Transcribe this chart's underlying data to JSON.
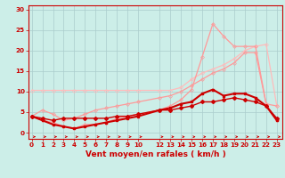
{
  "background_color": "#cceee8",
  "grid_color": "#aacccc",
  "xlabel": "Vent moyen/en rafales ( km/h )",
  "xlabel_color": "#cc0000",
  "xlabel_fontsize": 6.5,
  "tick_color": "#cc0000",
  "tick_fontsize": 5.2,
  "x_ticks": [
    0,
    1,
    2,
    3,
    4,
    5,
    6,
    7,
    8,
    9,
    10,
    12,
    13,
    14,
    15,
    16,
    17,
    18,
    19,
    20,
    21,
    22,
    23
  ],
  "ylim": [
    -1.5,
    31
  ],
  "xlim": [
    -0.3,
    23.5
  ],
  "yticks": [
    0,
    5,
    10,
    15,
    20,
    25,
    30
  ],
  "line1_x": [
    0,
    1,
    2,
    3,
    4,
    5,
    6,
    7,
    8,
    9,
    10,
    12,
    13,
    14,
    15,
    16,
    17,
    18,
    19,
    20,
    21,
    22,
    23
  ],
  "line1_y": [
    10.3,
    10.3,
    10.3,
    10.3,
    10.3,
    10.3,
    10.3,
    10.3,
    10.3,
    10.3,
    10.3,
    10.3,
    10.3,
    11.0,
    13.0,
    14.5,
    15.5,
    16.5,
    18.0,
    20.0,
    21.0,
    21.5,
    6.5
  ],
  "line1_color": "#ffbbbb",
  "line1_lw": 0.9,
  "line2_x": [
    0,
    1,
    2,
    3,
    4,
    5,
    6,
    7,
    8,
    9,
    10,
    12,
    13,
    14,
    15,
    16,
    17,
    18,
    19,
    20,
    21,
    22,
    23
  ],
  "line2_y": [
    4.0,
    5.5,
    4.5,
    3.0,
    3.5,
    4.5,
    5.5,
    6.0,
    6.5,
    7.0,
    7.5,
    8.5,
    9.0,
    10.0,
    11.5,
    13.0,
    14.5,
    15.5,
    17.0,
    19.5,
    19.5,
    7.0,
    6.5
  ],
  "line2_color": "#ff9999",
  "line2_lw": 0.9,
  "line3_x": [
    0,
    1,
    2,
    3,
    4,
    5,
    6,
    7,
    8,
    9,
    10,
    12,
    13,
    14,
    15,
    16,
    17,
    18,
    19,
    20,
    21,
    22,
    23
  ],
  "line3_y": [
    4.0,
    3.0,
    2.5,
    1.5,
    1.0,
    2.0,
    2.0,
    2.5,
    3.5,
    4.0,
    4.5,
    5.5,
    6.5,
    8.0,
    10.5,
    18.5,
    26.5,
    23.5,
    21.0,
    21.0,
    21.0,
    7.0,
    3.0
  ],
  "line3_color": "#ff9999",
  "line3_lw": 0.9,
  "line4_x": [
    0,
    1,
    2,
    3,
    4,
    5,
    6,
    7,
    8,
    9,
    10,
    12,
    13,
    14,
    15,
    16,
    17,
    18,
    19,
    20,
    21,
    22,
    23
  ],
  "line4_y": [
    4.0,
    3.0,
    2.0,
    1.5,
    1.0,
    1.5,
    2.0,
    2.5,
    3.0,
    3.5,
    4.0,
    5.5,
    6.0,
    7.0,
    7.5,
    9.5,
    10.5,
    9.0,
    9.5,
    9.5,
    8.5,
    6.5,
    3.0
  ],
  "line4_color": "#cc0000",
  "line4_lw": 1.5,
  "line5_x": [
    0,
    1,
    2,
    3,
    4,
    5,
    6,
    7,
    8,
    9,
    10,
    12,
    13,
    14,
    15,
    16,
    17,
    18,
    19,
    20,
    21,
    22,
    23
  ],
  "line5_y": [
    4.0,
    3.5,
    3.0,
    3.5,
    3.5,
    3.5,
    3.5,
    3.5,
    4.0,
    4.0,
    4.5,
    5.5,
    5.5,
    6.0,
    6.5,
    7.5,
    7.5,
    8.0,
    8.5,
    8.0,
    7.5,
    6.5,
    3.5
  ],
  "line5_color": "#cc0000",
  "line5_lw": 1.0,
  "arrow_color": "#cc0000"
}
